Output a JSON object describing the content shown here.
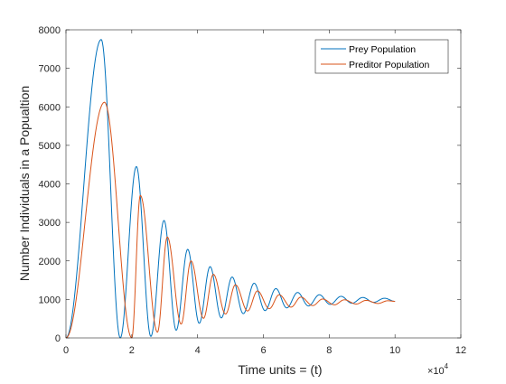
{
  "chart_data": {
    "type": "line",
    "title": "",
    "xlabel": "Time units = (t)",
    "ylabel": "Number Individuals in a Popualtion",
    "x_multiplier_label": "×10",
    "x_multiplier_exponent": "4",
    "xlim": [
      0,
      12
    ],
    "ylim": [
      0,
      8000
    ],
    "xticks": [
      "0",
      "2",
      "4",
      "6",
      "8",
      "10",
      "12"
    ],
    "yticks": [
      "0",
      "1000",
      "2000",
      "3000",
      "4000",
      "5000",
      "6000",
      "7000",
      "8000"
    ],
    "grid": false,
    "legend_position": "top-right",
    "series": [
      {
        "name": "Prey Population",
        "color": "#0072BD",
        "peaks": [
          [
            1.07,
            7750
          ],
          [
            2.14,
            4450
          ],
          [
            2.98,
            3050
          ],
          [
            3.7,
            2300
          ],
          [
            4.38,
            1850
          ],
          [
            5.05,
            1580
          ],
          [
            5.72,
            1420
          ],
          [
            6.38,
            1280
          ],
          [
            7.04,
            1180
          ],
          [
            7.7,
            1120
          ],
          [
            8.36,
            1080
          ],
          [
            9.02,
            1050
          ],
          [
            9.68,
            1030
          ]
        ],
        "troughs": [
          [
            0.0,
            0
          ],
          [
            1.65,
            0
          ],
          [
            2.58,
            40
          ],
          [
            3.35,
            200
          ],
          [
            4.05,
            380
          ],
          [
            4.72,
            520
          ],
          [
            5.39,
            630
          ],
          [
            6.05,
            710
          ],
          [
            6.71,
            780
          ],
          [
            7.37,
            830
          ],
          [
            8.03,
            870
          ],
          [
            8.69,
            900
          ],
          [
            9.35,
            925
          ]
        ],
        "end": [
          10.0,
          950
        ]
      },
      {
        "name": "Preditor Population",
        "color": "#D95319",
        "peaks": [
          [
            1.17,
            6120
          ],
          [
            2.26,
            3700
          ],
          [
            3.08,
            2620
          ],
          [
            3.8,
            2000
          ],
          [
            4.48,
            1650
          ],
          [
            5.15,
            1380
          ],
          [
            5.82,
            1220
          ],
          [
            6.48,
            1120
          ],
          [
            7.14,
            1060
          ],
          [
            7.8,
            1010
          ],
          [
            8.46,
            990
          ],
          [
            9.12,
            975
          ],
          [
            9.78,
            965
          ]
        ],
        "troughs": [
          [
            0.0,
            0
          ],
          [
            2.0,
            0
          ],
          [
            2.78,
            150
          ],
          [
            3.5,
            360
          ],
          [
            4.18,
            510
          ],
          [
            4.85,
            620
          ],
          [
            5.52,
            700
          ],
          [
            6.18,
            760
          ],
          [
            6.84,
            800
          ],
          [
            7.5,
            840
          ],
          [
            8.16,
            860
          ],
          [
            8.82,
            880
          ],
          [
            9.48,
            895
          ]
        ],
        "end": [
          10.0,
          950
        ]
      }
    ]
  }
}
